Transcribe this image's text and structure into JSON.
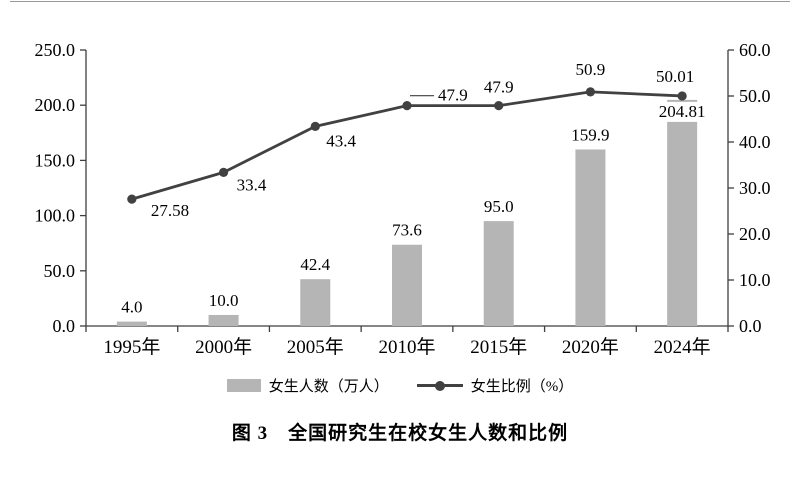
{
  "caption": "图 3　全国研究生在校女生人数和比例",
  "colors": {
    "bar": "#b5b5b5",
    "line": "#414141",
    "axis": "#3f3f3f"
  },
  "chart_data": {
    "type": "bar",
    "subtype": "combo-bar-line",
    "categories": [
      "1995年",
      "2000年",
      "2005年",
      "2010年",
      "2015年",
      "2020年",
      "2024年"
    ],
    "series": [
      {
        "name": "女生人数（万人）",
        "type": "bar",
        "axis": "left",
        "values": [
          4.0,
          10.0,
          42.4,
          73.6,
          95.0,
          159.9,
          204.81
        ],
        "labels": [
          "4.0",
          "10.0",
          "42.4",
          "73.6",
          "95.0",
          "159.9",
          "204.81"
        ]
      },
      {
        "name": "女生比例（%）",
        "type": "line",
        "axis": "right",
        "values": [
          27.58,
          33.4,
          43.4,
          47.9,
          47.9,
          50.9,
          50.01
        ],
        "labels": [
          "27.58",
          "33.4",
          "43.4",
          "47.9",
          "47.9",
          "50.9",
          "50.01"
        ]
      }
    ],
    "left_axis": {
      "min": 0,
      "max": 250,
      "step": 50,
      "tick_labels": [
        "0.0",
        "50.0",
        "100.0",
        "150.0",
        "200.0",
        "250.0"
      ]
    },
    "right_axis": {
      "min": 0,
      "max": 60,
      "step": 10,
      "tick_labels": [
        "0.0",
        "10.0",
        "20.0",
        "30.0",
        "40.0",
        "50.0",
        "60.0"
      ]
    },
    "grid": false,
    "legend_position": "bottom",
    "title": "图 3　全国研究生在校女生人数和比例"
  }
}
